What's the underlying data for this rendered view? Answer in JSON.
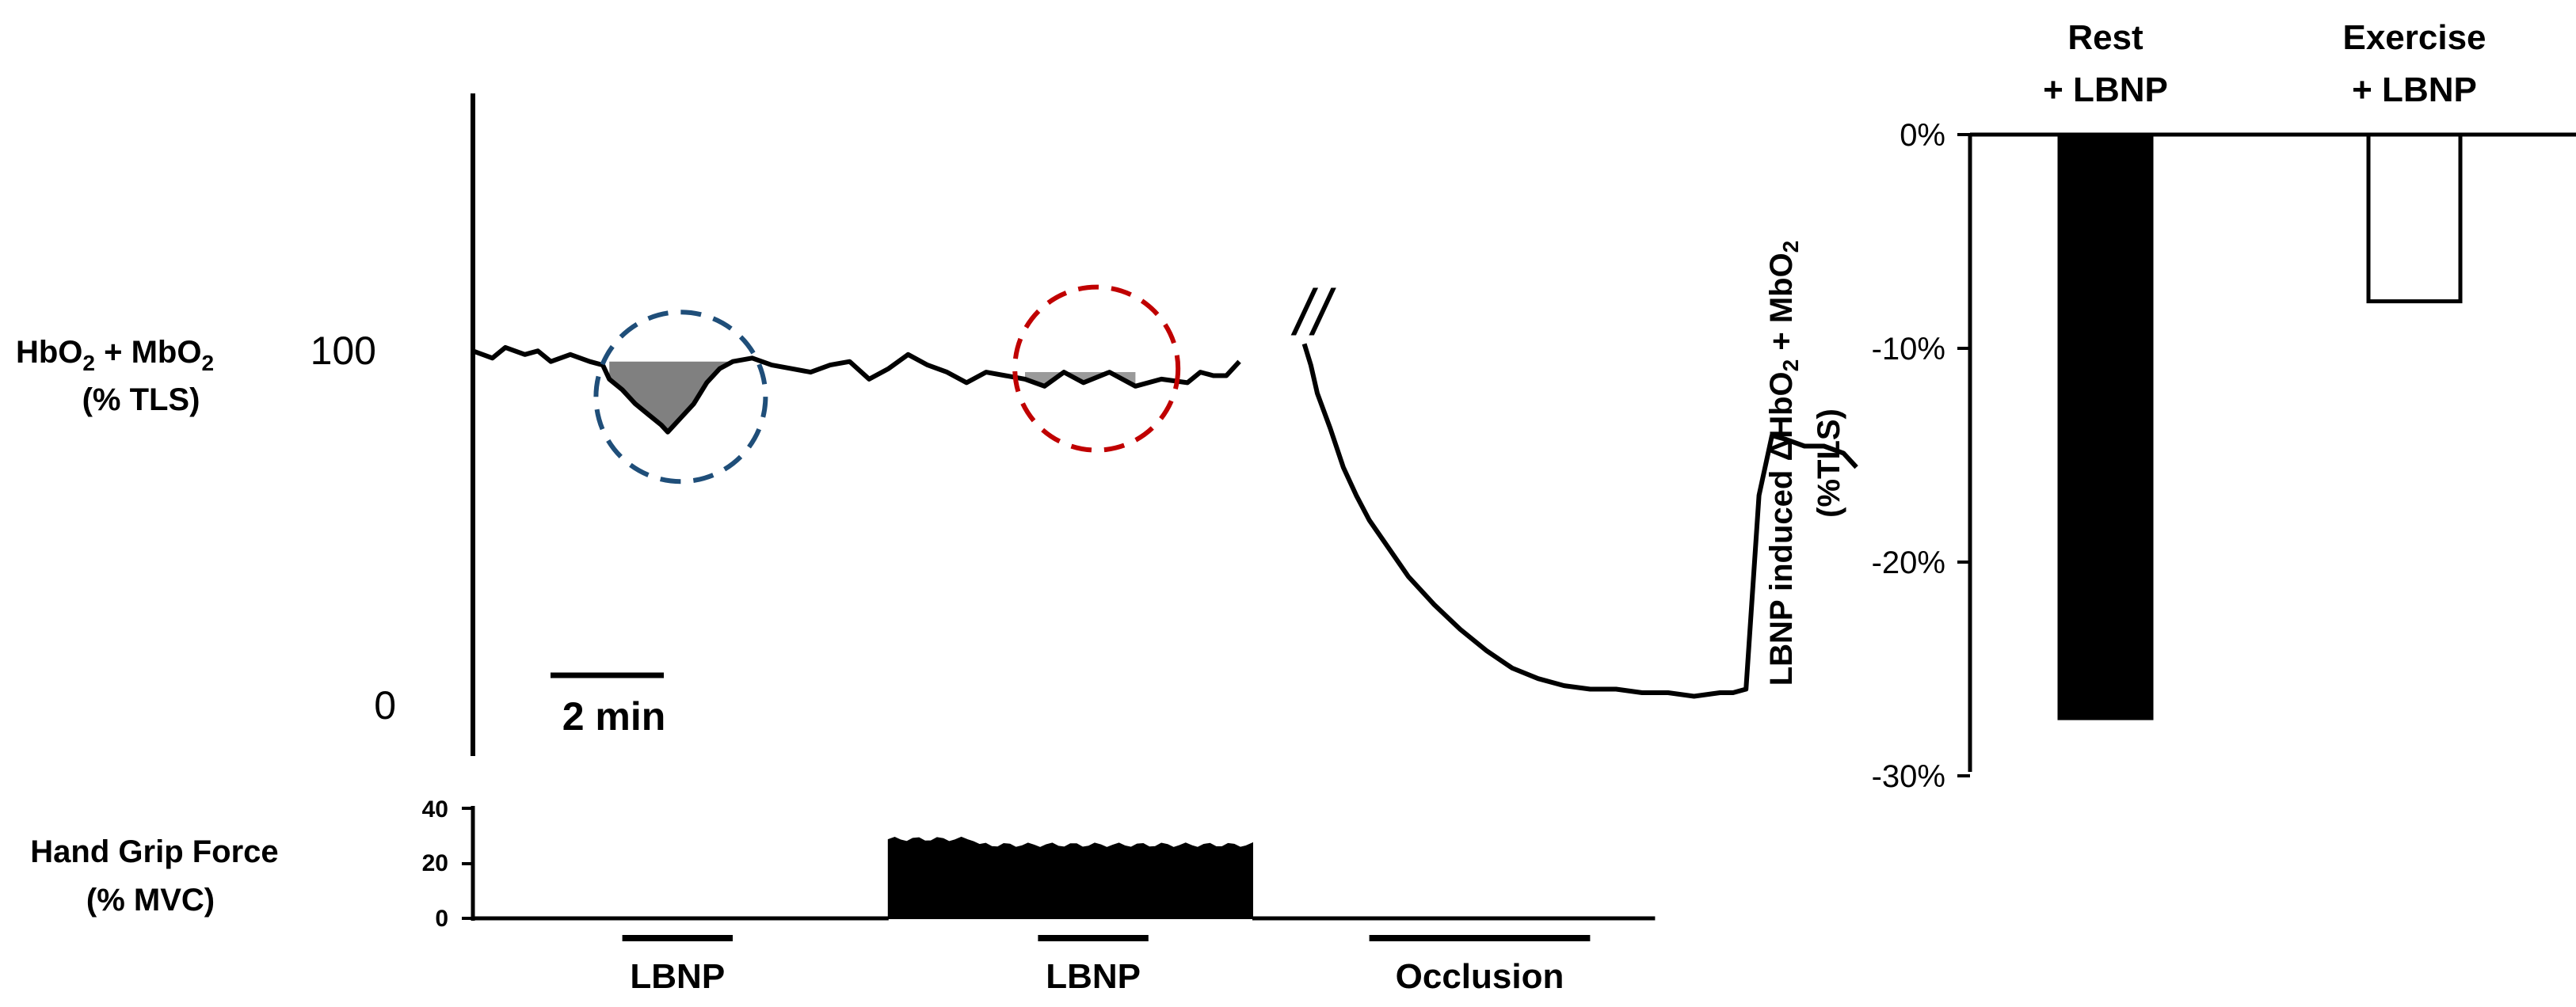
{
  "chart_data": [
    {
      "type": "line",
      "panel": "left-trace",
      "ylabel_parts": [
        "HbO",
        "2",
        " + MbO",
        "2"
      ],
      "ylabel_line2": "(% TLS)",
      "y_ticks": [
        "100",
        "0"
      ],
      "ylim": [
        0,
        100
      ],
      "scale_bar_label": "2 min",
      "axis_break_label": "//",
      "series": [
        {
          "x": [
            0.0,
            0.3,
            0.5,
            0.8,
            1.0,
            1.2,
            1.5,
            1.8,
            2.0,
            2.1,
            2.3,
            2.5,
            2.7,
            2.9,
            3.0,
            3.2,
            3.4,
            3.6,
            3.8,
            4.0,
            4.3,
            4.6,
            4.9,
            5.2,
            5.5,
            5.8,
            6.1,
            6.4,
            6.7,
            7.0,
            7.3,
            7.6,
            7.9,
            8.2,
            8.5,
            8.8,
            9.1,
            9.4,
            9.8,
            10.2,
            10.6,
            11.0,
            11.2,
            11.4,
            11.6,
            11.8
          ],
          "values": [
            97,
            95,
            98,
            96,
            97,
            94,
            96,
            94,
            93,
            89,
            86,
            82,
            79,
            76,
            74,
            78,
            82,
            88,
            92,
            94,
            95,
            93,
            92,
            91,
            93,
            94,
            89,
            92,
            96,
            93,
            91,
            88,
            91,
            90,
            89,
            87,
            91,
            88,
            91,
            87,
            89,
            88,
            91,
            90,
            90,
            94
          ]
        },
        {
          "x": [
            12.8,
            12.9,
            13.0,
            13.2,
            13.4,
            13.6,
            13.8,
            14.1,
            14.4,
            14.8,
            15.2,
            15.6,
            16.0,
            16.4,
            16.8,
            17.2,
            17.6,
            18.0,
            18.4,
            18.8,
            19.2,
            19.4,
            19.6,
            19.8,
            20.0,
            20.2,
            20.5,
            20.8,
            21.1,
            21.3
          ],
          "values": [
            99,
            93,
            85,
            75,
            64,
            56,
            49,
            41,
            33,
            25,
            18,
            12,
            7,
            4,
            2,
            1,
            1,
            0,
            0,
            -1,
            0,
            0,
            1,
            56,
            73,
            72,
            70,
            70,
            68,
            64
          ]
        }
      ],
      "shaded_regions": [
        {
          "name": "rest-lbnp",
          "color": "#808080",
          "circle_color": "#1f4e79"
        },
        {
          "name": "exercise-lbnp",
          "color": "#9a9a9a",
          "circle_color": "#c00000"
        }
      ]
    },
    {
      "type": "area",
      "panel": "hand-grip",
      "ylabel_line1": "Hand Grip Force",
      "ylabel_line2": "(% MVC)",
      "y_ticks": [
        "40",
        "20",
        "0"
      ],
      "ylim": [
        0,
        40
      ],
      "grip_on": {
        "x_start": 6.4,
        "x_end": 12.0,
        "value": 27
      },
      "baseline_value": 0,
      "markers": [
        {
          "label": "LBNP",
          "x_start": 2.3,
          "x_end": 4.0
        },
        {
          "label": "LBNP",
          "x_start": 8.7,
          "x_end": 10.4
        },
        {
          "label": "Occlusion",
          "x_start": 13.8,
          "x_end": 17.2
        }
      ]
    },
    {
      "type": "bar",
      "panel": "summary",
      "categories": [
        {
          "line1": "Rest",
          "line2": "+ LBNP"
        },
        {
          "line1": "Exercise",
          "line2": "+ LBNP"
        }
      ],
      "values": [
        -27.3,
        -7.8
      ],
      "fills": [
        "#000000",
        "#ffffff"
      ],
      "ylim": [
        -30,
        0
      ],
      "y_ticks": [
        "0%",
        "-10%",
        "-20%",
        "-30%"
      ],
      "ylabel_part1": "LBNP induced ΔHbO",
      "ylabel_sub1": "2",
      "ylabel_part2": " + MbO",
      "ylabel_sub2": "2",
      "ylabel_line2": "(%TLS)"
    }
  ]
}
